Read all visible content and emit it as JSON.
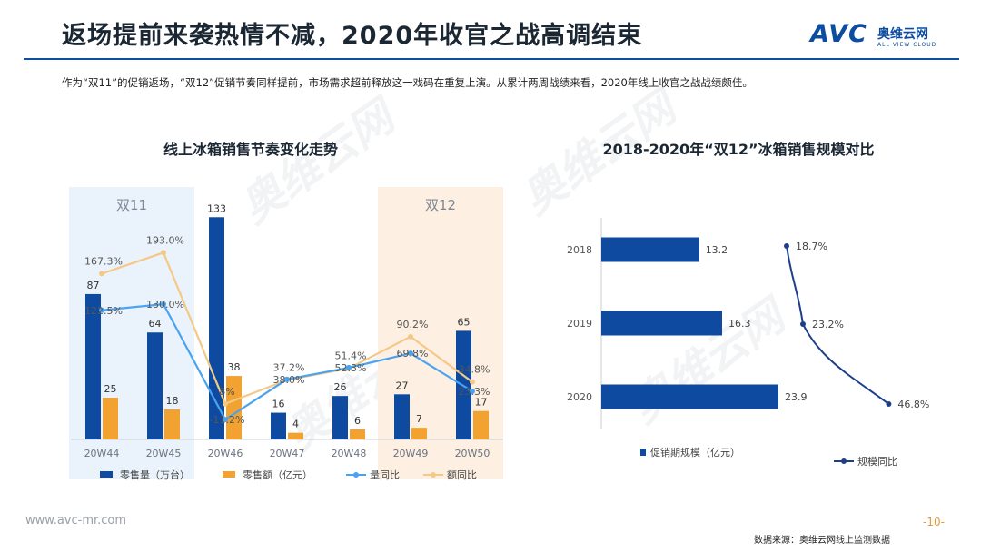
{
  "header": {
    "title": "返场提前来袭热情不减，2020年收官之战高调结束",
    "logo_text": "AVC",
    "logo_cn": "奥维云网",
    "logo_en": "ALL VIEW CLOUD"
  },
  "subtitle": "作为“双11”的促销返场，“双12”促销节奏同样提前，市场需求超前释放这一戏码在重复上演。从累计两周战绩来看，2020年线上收官之战战绩颇佳。",
  "watermark": "奥维云网",
  "footer": {
    "url": "www.avc-mr.com",
    "page": "-10-",
    "source": "数据来源：奥维云网线上监测数据"
  },
  "colors": {
    "brand": "#0f4fa0",
    "bar_volume": "#0e4aa0",
    "bar_amount": "#f2a230",
    "line_volume": "#4aa3f0",
    "line_amount": "#f4c987",
    "band_11": "#eaf3fc",
    "band_12": "#fdf0e2"
  },
  "chart_data": [
    {
      "type": "bar+line",
      "title": "线上冰箱销售节奏变化走势",
      "categories": [
        "20W44",
        "20W45",
        "20W46",
        "20W47",
        "20W48",
        "20W49",
        "20W50"
      ],
      "series": [
        {
          "name": "零售量（万台）",
          "kind": "bar",
          "values": [
            87,
            64,
            133,
            16,
            26,
            27,
            65
          ]
        },
        {
          "name": "零售额（亿元）",
          "kind": "bar",
          "values": [
            25,
            18,
            38,
            4,
            6,
            7,
            17
          ]
        },
        {
          "name": "量同比",
          "kind": "line",
          "values": [
            122.5,
            130.0,
            -11.2,
            38.0,
            52.3,
            69.8,
            23.3
          ],
          "labels": [
            "122.5%",
            "130.0%",
            "-11.2%",
            "38.0%",
            "52.3%",
            "69.8%",
            "23.3%"
          ]
        },
        {
          "name": "额同比",
          "kind": "line",
          "values": [
            167.3,
            193.0,
            8.0,
            37.2,
            51.4,
            90.2,
            34.8
          ],
          "labels": [
            "167.3%",
            "193.0%",
            "8%",
            "37.2%",
            "51.4%",
            "90.2%",
            "34.8%"
          ]
        }
      ],
      "bands": [
        {
          "label": "双11",
          "from": "20W44",
          "to": "20W45"
        },
        {
          "label": "双12",
          "from": "20W49",
          "to": "20W50"
        }
      ],
      "legend": [
        "零售量（万台）",
        "零售额（亿元）",
        "量同比",
        "额同比"
      ]
    },
    {
      "type": "hbar+line",
      "title": "2018-2020年“双12”冰箱销售规模对比",
      "categories": [
        "2018",
        "2019",
        "2020"
      ],
      "series": [
        {
          "name": "促销期规模（亿元）",
          "kind": "bar",
          "values": [
            13.2,
            16.3,
            23.9
          ],
          "labels": [
            "13.2",
            "16.3",
            "23.9"
          ]
        },
        {
          "name": "规模同比",
          "kind": "line",
          "values": [
            18.7,
            23.2,
            46.8
          ],
          "labels": [
            "18.7%",
            "23.2%",
            "46.8%"
          ]
        }
      ],
      "legend": [
        "促销期规模（亿元）",
        "规模同比"
      ]
    }
  ]
}
